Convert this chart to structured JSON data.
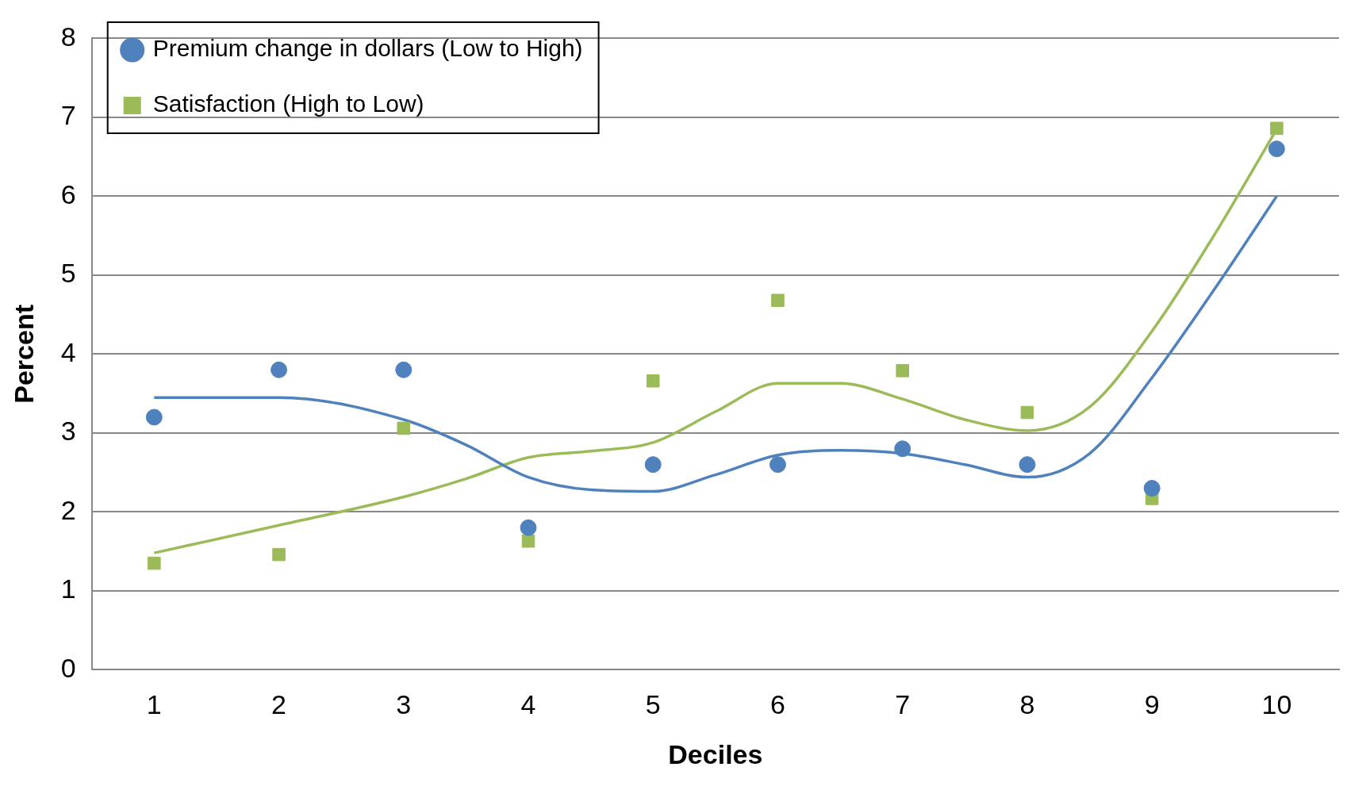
{
  "chart_data": {
    "type": "scatter",
    "xlabel": "Deciles",
    "ylabel": "Percent",
    "x": [
      1,
      2,
      3,
      4,
      5,
      6,
      7,
      8,
      9,
      10
    ],
    "xlim": [
      0.5,
      10.5
    ],
    "xticks": [
      1,
      2,
      3,
      4,
      5,
      6,
      7,
      8,
      9,
      10
    ],
    "ylim": [
      0,
      8
    ],
    "yticks": [
      0,
      1,
      2,
      3,
      4,
      5,
      6,
      7,
      8
    ],
    "grid": "y",
    "legend": "top left",
    "series": [
      {
        "name": "Premium change in dollars (Low to High)",
        "color": "#4f81bd",
        "marker": "circle",
        "values": [
          3.2,
          3.8,
          3.8,
          1.8,
          2.6,
          2.6,
          2.8,
          2.6,
          2.3,
          6.6
        ]
      },
      {
        "name": "Satisfaction (High to Low)",
        "color": "#9bbb59",
        "marker": "square",
        "values": [
          1.35,
          1.46,
          3.06,
          1.63,
          3.66,
          4.68,
          3.79,
          3.26,
          2.17,
          6.86
        ]
      },
      {
        "type": "line",
        "color": "#4f81bd",
        "marker": "none",
        "x": [
          1,
          2,
          3,
          3.5,
          4,
          4.5,
          5,
          5.5,
          6,
          6.5,
          7,
          7.5,
          8,
          8.5,
          9,
          9.5,
          10
        ],
        "values": [
          3.45,
          3.45,
          3.17,
          2.85,
          2.44,
          2.28,
          2.26,
          2.47,
          2.72,
          2.78,
          2.74,
          2.6,
          2.44,
          2.74,
          3.7,
          4.82,
          6.0
        ]
      },
      {
        "type": "line",
        "color": "#9bbb59",
        "marker": "none",
        "x": [
          1,
          2,
          3,
          3.5,
          4,
          4.5,
          5,
          5.5,
          6,
          6.5,
          7,
          7.5,
          8,
          8.5,
          9,
          9.5,
          10
        ],
        "values": [
          1.48,
          1.83,
          2.19,
          2.42,
          2.69,
          2.77,
          2.88,
          3.27,
          3.63,
          3.63,
          3.43,
          3.17,
          3.03,
          3.33,
          4.29,
          5.51,
          6.85
        ]
      }
    ]
  }
}
